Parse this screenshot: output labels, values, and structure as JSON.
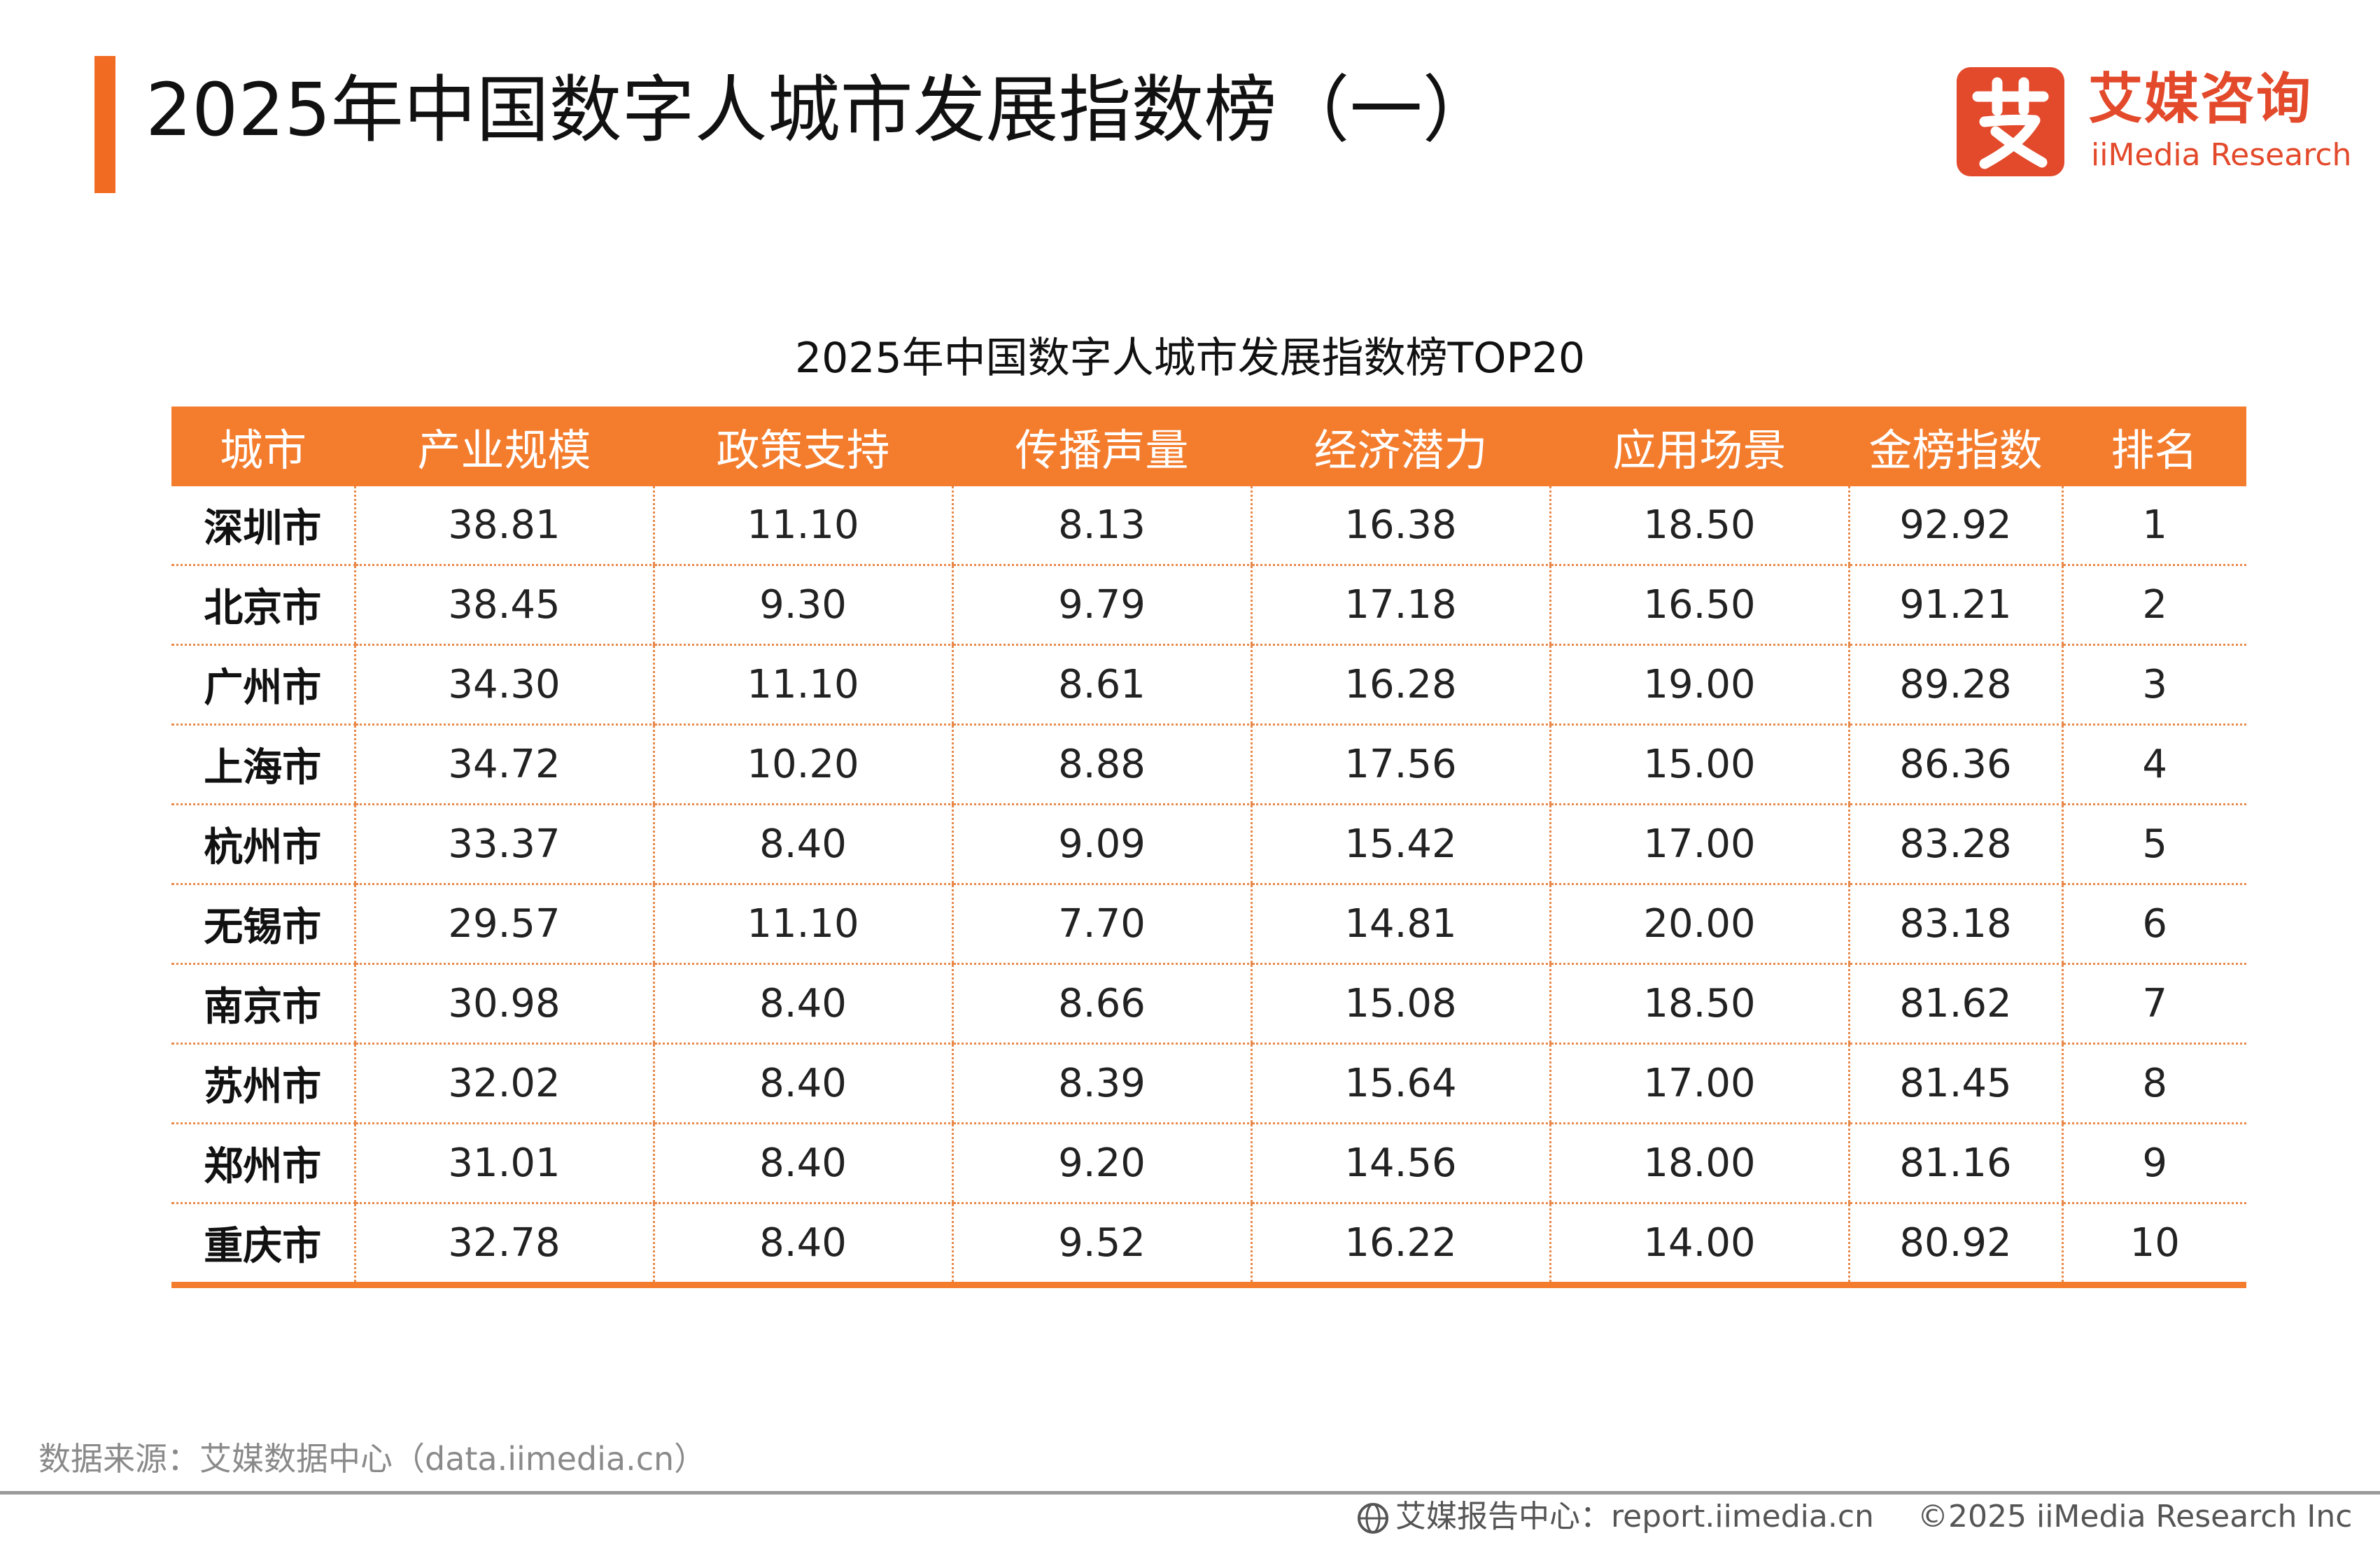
{
  "header": {
    "title": "2025年中国数字人城市发展指数榜（一）",
    "accent_color": "#f26b22"
  },
  "logo": {
    "mark_char": "艾",
    "name_cn": "艾媒咨询",
    "name_en": "iiMedia Research",
    "color": "#e3492b"
  },
  "chart_data": {
    "type": "table",
    "title": "2025年中国数字人城市发展指数榜TOP20",
    "header_color": "#f47c2d",
    "columns": [
      "城市",
      "产业规模",
      "政策支持",
      "传播声量",
      "经济潜力",
      "应用场景",
      "金榜指数",
      "排名"
    ],
    "rows": [
      [
        "深圳市",
        "38.81",
        "11.10",
        "8.13",
        "16.38",
        "18.50",
        "92.92",
        "1"
      ],
      [
        "北京市",
        "38.45",
        "9.30",
        "9.79",
        "17.18",
        "16.50",
        "91.21",
        "2"
      ],
      [
        "广州市",
        "34.30",
        "11.10",
        "8.61",
        "16.28",
        "19.00",
        "89.28",
        "3"
      ],
      [
        "上海市",
        "34.72",
        "10.20",
        "8.88",
        "17.56",
        "15.00",
        "86.36",
        "4"
      ],
      [
        "杭州市",
        "33.37",
        "8.40",
        "9.09",
        "15.42",
        "17.00",
        "83.28",
        "5"
      ],
      [
        "无锡市",
        "29.57",
        "11.10",
        "7.70",
        "14.81",
        "20.00",
        "83.18",
        "6"
      ],
      [
        "南京市",
        "30.98",
        "8.40",
        "8.66",
        "15.08",
        "18.50",
        "81.62",
        "7"
      ],
      [
        "苏州市",
        "32.02",
        "8.40",
        "8.39",
        "15.64",
        "17.00",
        "81.45",
        "8"
      ],
      [
        "郑州市",
        "31.01",
        "8.40",
        "9.20",
        "14.56",
        "18.00",
        "81.16",
        "9"
      ],
      [
        "重庆市",
        "32.78",
        "8.40",
        "9.52",
        "16.22",
        "14.00",
        "80.92",
        "10"
      ]
    ]
  },
  "footer": {
    "source": "数据来源：艾媒数据中心（data.iimedia.cn）",
    "report_center": "艾媒报告中心：report.iimedia.cn",
    "report_icon": "globe-icon",
    "copyright": "©2025  iiMedia Research  Inc"
  }
}
